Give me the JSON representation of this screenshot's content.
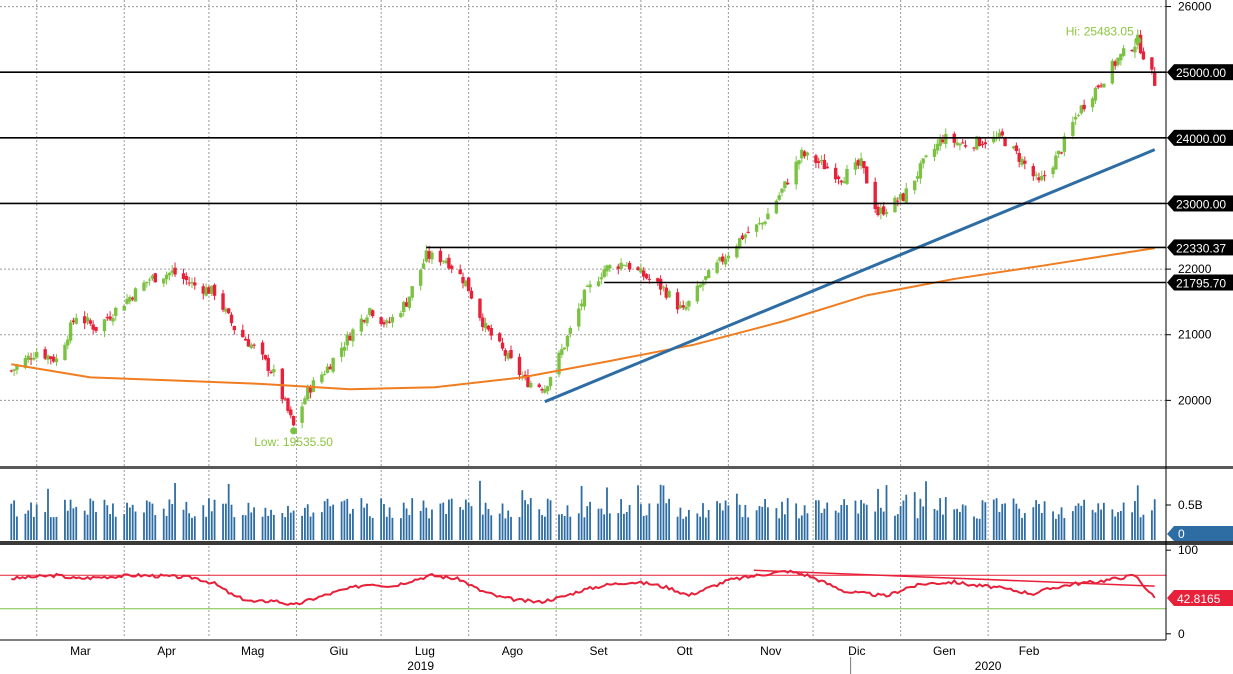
{
  "chart_data": [
    {
      "panel": "price",
      "type": "candlestick",
      "y_ticks": [
        20000,
        21000,
        22000,
        23000,
        24000,
        25000,
        26000
      ],
      "ylim": [
        19000,
        26100
      ],
      "close_path": [
        [
          "2019-02-20",
          20450
        ],
        [
          "2019-03-01",
          20750
        ],
        [
          "2019-03-08",
          20620
        ],
        [
          "2019-03-15",
          21300
        ],
        [
          "2019-03-22",
          21100
        ],
        [
          "2019-04-01",
          21500
        ],
        [
          "2019-04-10",
          21850
        ],
        [
          "2019-04-18",
          21950
        ],
        [
          "2019-04-26",
          21750
        ],
        [
          "2019-05-03",
          21650
        ],
        [
          "2019-05-10",
          21100
        ],
        [
          "2019-05-17",
          20800
        ],
        [
          "2019-05-24",
          20400
        ],
        [
          "2019-05-31",
          19600
        ],
        [
          "2019-06-05",
          20150
        ],
        [
          "2019-06-12",
          20500
        ],
        [
          "2019-06-20",
          21000
        ],
        [
          "2019-06-27",
          21400
        ],
        [
          "2019-07-03",
          21150
        ],
        [
          "2019-07-10",
          21500
        ],
        [
          "2019-07-17",
          22200
        ],
        [
          "2019-07-24",
          22150
        ],
        [
          "2019-07-31",
          21800
        ],
        [
          "2019-08-07",
          21100
        ],
        [
          "2019-08-14",
          20700
        ],
        [
          "2019-08-21",
          20300
        ],
        [
          "2019-08-28",
          20200
        ],
        [
          "2019-09-04",
          20850
        ],
        [
          "2019-09-11",
          21600
        ],
        [
          "2019-09-18",
          22000
        ],
        [
          "2019-09-25",
          22100
        ],
        [
          "2019-10-02",
          21900
        ],
        [
          "2019-10-09",
          21700
        ],
        [
          "2019-10-16",
          21350
        ],
        [
          "2019-10-23",
          21800
        ],
        [
          "2019-10-30",
          22150
        ],
        [
          "2019-11-06",
          22500
        ],
        [
          "2019-11-13",
          22700
        ],
        [
          "2019-11-20",
          23200
        ],
        [
          "2019-11-27",
          23750
        ],
        [
          "2019-12-04",
          23600
        ],
        [
          "2019-12-11",
          23400
        ],
        [
          "2019-12-18",
          23600
        ],
        [
          "2019-12-24",
          22850
        ],
        [
          "2020-01-02",
          23100
        ],
        [
          "2020-01-09",
          23600
        ],
        [
          "2020-01-16",
          24000
        ],
        [
          "2020-01-23",
          23900
        ],
        [
          "2020-01-30",
          23950
        ],
        [
          "2020-02-06",
          24000
        ],
        [
          "2020-02-13",
          23650
        ],
        [
          "2020-02-19",
          23300
        ],
        [
          "2020-02-26",
          23750
        ],
        [
          "2020-03-04",
          24400
        ],
        [
          "2020-03-11",
          24800
        ],
        [
          "2020-03-18",
          25200
        ],
        [
          "2020-03-25",
          25483.05
        ],
        [
          "2020-03-31",
          24850
        ]
      ],
      "moving_average": [
        [
          "2019-02-20",
          20550
        ],
        [
          "2019-03-20",
          20350
        ],
        [
          "2019-04-20",
          20300
        ],
        [
          "2019-05-20",
          20250
        ],
        [
          "2019-06-20",
          20170
        ],
        [
          "2019-07-20",
          20200
        ],
        [
          "2019-08-20",
          20350
        ],
        [
          "2019-09-20",
          20600
        ],
        [
          "2019-10-20",
          20850
        ],
        [
          "2019-11-20",
          21200
        ],
        [
          "2019-12-20",
          21600
        ],
        [
          "2020-01-20",
          21850
        ],
        [
          "2020-02-20",
          22050
        ],
        [
          "2020-03-31",
          22320
        ]
      ],
      "trendline": [
        [
          "2019-08-28",
          19980
        ],
        [
          "2020-03-31",
          23820
        ]
      ],
      "horizontal_levels": [
        {
          "value": 25000,
          "label": "25000.00"
        },
        {
          "value": 24000,
          "label": "24000.00"
        },
        {
          "value": 23000,
          "label": "23000.00"
        },
        {
          "value": 22330.37,
          "label": "22330.37",
          "from": "2019-07-17"
        },
        {
          "value": 21795.7,
          "label": "21795.70",
          "from": "2019-09-18"
        }
      ],
      "annotations": {
        "high": {
          "date": "2020-03-25",
          "value": 25483.05,
          "label": "Hi: 25483.05"
        },
        "low": {
          "date": "2019-05-31",
          "value": 19535.5,
          "label": "Low: 19535.50"
        }
      },
      "colors": {
        "up": "#7cc242",
        "down": "#e8213a",
        "moving_average": "#f07d20",
        "trendline": "#2e6da4",
        "level": "#000000"
      }
    },
    {
      "panel": "volume",
      "type": "bar",
      "y_ticks": [
        {
          "value": 0.5,
          "label": "0.5B"
        }
      ],
      "ylim": [
        0,
        1.0
      ],
      "current": {
        "value": 0,
        "label": "0"
      },
      "colors": {
        "bar": "#2e6da4",
        "badge": "#2e6da4"
      }
    },
    {
      "panel": "oscillator",
      "type": "line",
      "y_ticks": [
        0,
        100
      ],
      "ylim": [
        -5,
        105
      ],
      "overbought": 70,
      "oversold": 30,
      "current": {
        "value": 42.8165,
        "label": "42.8165"
      },
      "series": [
        [
          "2019-02-20",
          66
        ],
        [
          "2019-03-08",
          70
        ],
        [
          "2019-03-15",
          66
        ],
        [
          "2019-03-25",
          68
        ],
        [
          "2019-04-05",
          70
        ],
        [
          "2019-04-15",
          69
        ],
        [
          "2019-04-26",
          67
        ],
        [
          "2019-05-03",
          60
        ],
        [
          "2019-05-10",
          45
        ],
        [
          "2019-05-17",
          38
        ],
        [
          "2019-05-24",
          40
        ],
        [
          "2019-05-31",
          34
        ],
        [
          "2019-06-07",
          42
        ],
        [
          "2019-06-17",
          52
        ],
        [
          "2019-06-27",
          60
        ],
        [
          "2019-07-05",
          57
        ],
        [
          "2019-07-12",
          64
        ],
        [
          "2019-07-19",
          70
        ],
        [
          "2019-07-29",
          65
        ],
        [
          "2019-08-05",
          52
        ],
        [
          "2019-08-12",
          44
        ],
        [
          "2019-08-19",
          40
        ],
        [
          "2019-08-26",
          38
        ],
        [
          "2019-09-03",
          44
        ],
        [
          "2019-09-10",
          52
        ],
        [
          "2019-09-18",
          58
        ],
        [
          "2019-09-27",
          62
        ],
        [
          "2019-10-04",
          60
        ],
        [
          "2019-10-11",
          55
        ],
        [
          "2019-10-18",
          46
        ],
        [
          "2019-10-25",
          55
        ],
        [
          "2019-11-01",
          64
        ],
        [
          "2019-11-08",
          68
        ],
        [
          "2019-11-15",
          72
        ],
        [
          "2019-11-22",
          75
        ],
        [
          "2019-11-29",
          70
        ],
        [
          "2019-12-06",
          60
        ],
        [
          "2019-12-13",
          50
        ],
        [
          "2019-12-20",
          48
        ],
        [
          "2019-12-27",
          45
        ],
        [
          "2020-01-03",
          55
        ],
        [
          "2020-01-10",
          60
        ],
        [
          "2020-01-20",
          62
        ],
        [
          "2020-01-27",
          58
        ],
        [
          "2020-02-03",
          56
        ],
        [
          "2020-02-10",
          52
        ],
        [
          "2020-02-17",
          48
        ],
        [
          "2020-02-24",
          55
        ],
        [
          "2020-03-03",
          60
        ],
        [
          "2020-03-10",
          62
        ],
        [
          "2020-03-17",
          66
        ],
        [
          "2020-03-24",
          70
        ],
        [
          "2020-03-31",
          42.8165
        ]
      ],
      "divergence_line": [
        [
          "2019-11-10",
          76
        ],
        [
          "2020-03-31",
          57
        ]
      ],
      "colors": {
        "line": "#e8213a",
        "overbought": "#e8213a",
        "oversold": "#7cc242",
        "badge": "#e8213a"
      }
    }
  ],
  "x_axis": {
    "months": [
      {
        "date": "2019-03-01",
        "label": "Mar"
      },
      {
        "date": "2019-04-01",
        "label": "Apr"
      },
      {
        "date": "2019-05-01",
        "label": "Mag"
      },
      {
        "date": "2019-06-01",
        "label": "Giu"
      },
      {
        "date": "2019-07-01",
        "label": "Lug"
      },
      {
        "date": "2019-08-01",
        "label": "Ago"
      },
      {
        "date": "2019-09-01",
        "label": "Set"
      },
      {
        "date": "2019-10-01",
        "label": "Ott"
      },
      {
        "date": "2019-11-01",
        "label": "Nov"
      },
      {
        "date": "2019-12-01",
        "label": "Dic"
      },
      {
        "date": "2020-01-01",
        "label": "Gen"
      },
      {
        "date": "2020-02-01",
        "label": "Feb"
      }
    ],
    "years": [
      {
        "date": "2019-07-15",
        "label": "2019"
      },
      {
        "date": "2020-02-01",
        "label": "2020"
      }
    ],
    "range": [
      "2019-02-16",
      "2020-04-04"
    ]
  }
}
